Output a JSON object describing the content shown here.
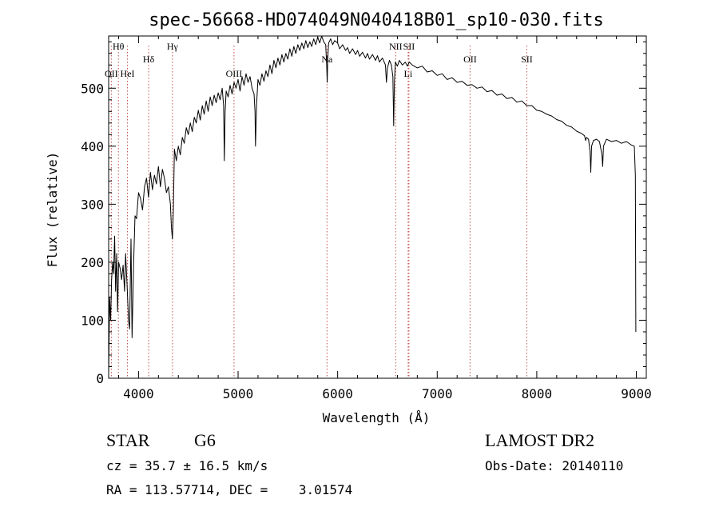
{
  "chart_data": {
    "type": "line",
    "title": "spec-56668-HD074049N040418B01_sp10-030.fits",
    "xlabel": "Wavelength (Å)",
    "ylabel": "Flux (relative)",
    "xlim": [
      3700,
      9100
    ],
    "ylim": [
      0,
      590
    ],
    "xticks": [
      4000,
      5000,
      6000,
      7000,
      8000,
      9000
    ],
    "yticks": [
      0,
      100,
      200,
      300,
      400,
      500
    ],
    "grid": false,
    "series": [
      {
        "points": [
          [
            3700,
            5
          ],
          [
            3710,
            140
          ],
          [
            3720,
            100
          ],
          [
            3730,
            170
          ],
          [
            3740,
            200
          ],
          [
            3750,
            180
          ],
          [
            3760,
            245
          ],
          [
            3770,
            150
          ],
          [
            3780,
            215
          ],
          [
            3790,
            115
          ],
          [
            3800,
            200
          ],
          [
            3815,
            190
          ],
          [
            3830,
            170
          ],
          [
            3845,
            195
          ],
          [
            3860,
            150
          ],
          [
            3870,
            215
          ],
          [
            3885,
            160
          ],
          [
            3900,
            100
          ],
          [
            3910,
            85
          ],
          [
            3925,
            240
          ],
          [
            3935,
            70
          ],
          [
            3950,
            195
          ],
          [
            3965,
            280
          ],
          [
            3980,
            275
          ],
          [
            4000,
            320
          ],
          [
            4020,
            310
          ],
          [
            4040,
            290
          ],
          [
            4060,
            330
          ],
          [
            4080,
            345
          ],
          [
            4100,
            312
          ],
          [
            4120,
            355
          ],
          [
            4140,
            325
          ],
          [
            4160,
            350
          ],
          [
            4180,
            335
          ],
          [
            4200,
            365
          ],
          [
            4220,
            330
          ],
          [
            4240,
            360
          ],
          [
            4260,
            345
          ],
          [
            4280,
            320
          ],
          [
            4300,
            330
          ],
          [
            4320,
            300
          ],
          [
            4330,
            262
          ],
          [
            4340,
            240
          ],
          [
            4350,
            290
          ],
          [
            4360,
            395
          ],
          [
            4380,
            375
          ],
          [
            4400,
            400
          ],
          [
            4420,
            385
          ],
          [
            4440,
            415
          ],
          [
            4460,
            405
          ],
          [
            4480,
            432
          ],
          [
            4500,
            420
          ],
          [
            4520,
            440
          ],
          [
            4540,
            425
          ],
          [
            4560,
            450
          ],
          [
            4580,
            440
          ],
          [
            4600,
            462
          ],
          [
            4620,
            445
          ],
          [
            4640,
            470
          ],
          [
            4660,
            455
          ],
          [
            4680,
            478
          ],
          [
            4700,
            460
          ],
          [
            4720,
            485
          ],
          [
            4740,
            470
          ],
          [
            4760,
            488
          ],
          [
            4780,
            475
          ],
          [
            4800,
            492
          ],
          [
            4820,
            480
          ],
          [
            4840,
            500
          ],
          [
            4855,
            470
          ],
          [
            4862,
            375
          ],
          [
            4870,
            460
          ],
          [
            4880,
            495
          ],
          [
            4900,
            485
          ],
          [
            4920,
            505
          ],
          [
            4940,
            490
          ],
          [
            4960,
            510
          ],
          [
            4980,
            500
          ],
          [
            5000,
            515
          ],
          [
            5020,
            495
          ],
          [
            5040,
            520
          ],
          [
            5060,
            505
          ],
          [
            5080,
            525
          ],
          [
            5100,
            510
          ],
          [
            5120,
            520
          ],
          [
            5140,
            500
          ],
          [
            5160,
            490
          ],
          [
            5170,
            460
          ],
          [
            5175,
            400
          ],
          [
            5185,
            470
          ],
          [
            5200,
            515
          ],
          [
            5220,
            505
          ],
          [
            5240,
            525
          ],
          [
            5260,
            512
          ],
          [
            5280,
            530
          ],
          [
            5300,
            520
          ],
          [
            5320,
            540
          ],
          [
            5340,
            525
          ],
          [
            5360,
            548
          ],
          [
            5380,
            535
          ],
          [
            5400,
            552
          ],
          [
            5420,
            540
          ],
          [
            5440,
            558
          ],
          [
            5460,
            545
          ],
          [
            5480,
            560
          ],
          [
            5500,
            550
          ],
          [
            5520,
            568
          ],
          [
            5540,
            555
          ],
          [
            5560,
            572
          ],
          [
            5580,
            560
          ],
          [
            5600,
            575
          ],
          [
            5620,
            565
          ],
          [
            5640,
            578
          ],
          [
            5660,
            568
          ],
          [
            5680,
            582
          ],
          [
            5700,
            570
          ],
          [
            5720,
            580
          ],
          [
            5740,
            572
          ],
          [
            5760,
            585
          ],
          [
            5780,
            575
          ],
          [
            5800,
            588
          ],
          [
            5820,
            578
          ],
          [
            5840,
            590
          ],
          [
            5860,
            580
          ],
          [
            5880,
            575
          ],
          [
            5890,
            540
          ],
          [
            5895,
            510
          ],
          [
            5900,
            550
          ],
          [
            5910,
            578
          ],
          [
            5930,
            585
          ],
          [
            5950,
            575
          ],
          [
            5970,
            582
          ],
          [
            6000,
            578
          ],
          [
            6020,
            568
          ],
          [
            6050,
            575
          ],
          [
            6080,
            565
          ],
          [
            6100,
            570
          ],
          [
            6120,
            560
          ],
          [
            6150,
            568
          ],
          [
            6180,
            558
          ],
          [
            6200,
            565
          ],
          [
            6220,
            555
          ],
          [
            6250,
            562
          ],
          [
            6280,
            552
          ],
          [
            6300,
            560
          ],
          [
            6320,
            550
          ],
          [
            6350,
            558
          ],
          [
            6380,
            548
          ],
          [
            6400,
            556
          ],
          [
            6420,
            545
          ],
          [
            6450,
            552
          ],
          [
            6480,
            540
          ],
          [
            6490,
            510
          ],
          [
            6500,
            535
          ],
          [
            6520,
            548
          ],
          [
            6540,
            540
          ],
          [
            6555,
            520
          ],
          [
            6563,
            435
          ],
          [
            6570,
            510
          ],
          [
            6580,
            545
          ],
          [
            6600,
            538
          ],
          [
            6620,
            548
          ],
          [
            6650,
            540
          ],
          [
            6680,
            545
          ],
          [
            6700,
            538
          ],
          [
            6720,
            545
          ],
          [
            6750,
            540
          ],
          [
            6800,
            535
          ],
          [
            6850,
            538
          ],
          [
            6900,
            528
          ],
          [
            6950,
            530
          ],
          [
            7000,
            522
          ],
          [
            7050,
            525
          ],
          [
            7100,
            515
          ],
          [
            7150,
            518
          ],
          [
            7200,
            510
          ],
          [
            7250,
            512
          ],
          [
            7300,
            505
          ],
          [
            7350,
            506
          ],
          [
            7400,
            500
          ],
          [
            7450,
            502
          ],
          [
            7500,
            494
          ],
          [
            7550,
            496
          ],
          [
            7600,
            488
          ],
          [
            7650,
            490
          ],
          [
            7700,
            482
          ],
          [
            7750,
            484
          ],
          [
            7800,
            476
          ],
          [
            7850,
            478
          ],
          [
            7900,
            470
          ],
          [
            7950,
            470
          ],
          [
            8000,
            462
          ],
          [
            8050,
            460
          ],
          [
            8100,
            455
          ],
          [
            8150,
            452
          ],
          [
            8200,
            446
          ],
          [
            8250,
            443
          ],
          [
            8300,
            436
          ],
          [
            8350,
            433
          ],
          [
            8400,
            426
          ],
          [
            8450,
            422
          ],
          [
            8480,
            418
          ],
          [
            8490,
            410
          ],
          [
            8500,
            415
          ],
          [
            8520,
            412
          ],
          [
            8535,
            390
          ],
          [
            8542,
            355
          ],
          [
            8550,
            400
          ],
          [
            8570,
            410
          ],
          [
            8600,
            412
          ],
          [
            8630,
            408
          ],
          [
            8655,
            385
          ],
          [
            8662,
            365
          ],
          [
            8670,
            400
          ],
          [
            8700,
            412
          ],
          [
            8750,
            408
          ],
          [
            8800,
            410
          ],
          [
            8850,
            405
          ],
          [
            8900,
            408
          ],
          [
            8950,
            402
          ],
          [
            8980,
            400
          ],
          [
            8990,
            350
          ],
          [
            8995,
            80
          ]
        ]
      }
    ],
    "line_markers": [
      {
        "label": "Hθ",
        "x": 3798,
        "row": 1
      },
      {
        "label": "OII",
        "x": 3727,
        "row": 3
      },
      {
        "label": "HeI",
        "x": 3889,
        "row": 3
      },
      {
        "label": "Hδ",
        "x": 4102,
        "row": 2
      },
      {
        "label": "Hγ",
        "x": 4341,
        "row": 1
      },
      {
        "label": "OIII",
        "x": 4959,
        "row": 3
      },
      {
        "label": "Na",
        "x": 5893,
        "row": 2
      },
      {
        "label": "NII",
        "x": 6583,
        "row": 1
      },
      {
        "label": "SII",
        "x": 6716,
        "row": 1
      },
      {
        "label": "Li",
        "x": 6708,
        "row": 3
      },
      {
        "label": "OII",
        "x": 7330,
        "row": 2
      },
      {
        "label": "SII",
        "x": 7900,
        "row": 2
      }
    ]
  },
  "info": {
    "object_class": "STAR",
    "subclass": "G6",
    "cz": "cz = 35.7 ± 16.5 km/s",
    "radec": "RA = 113.57714, DEC =    3.01574",
    "survey": "LAMOST DR2",
    "obs_date": "Obs-Date: 20140110"
  },
  "colors": {
    "spectrum": "#000000",
    "marker_line": "#c0504d",
    "axis": "#000000"
  }
}
